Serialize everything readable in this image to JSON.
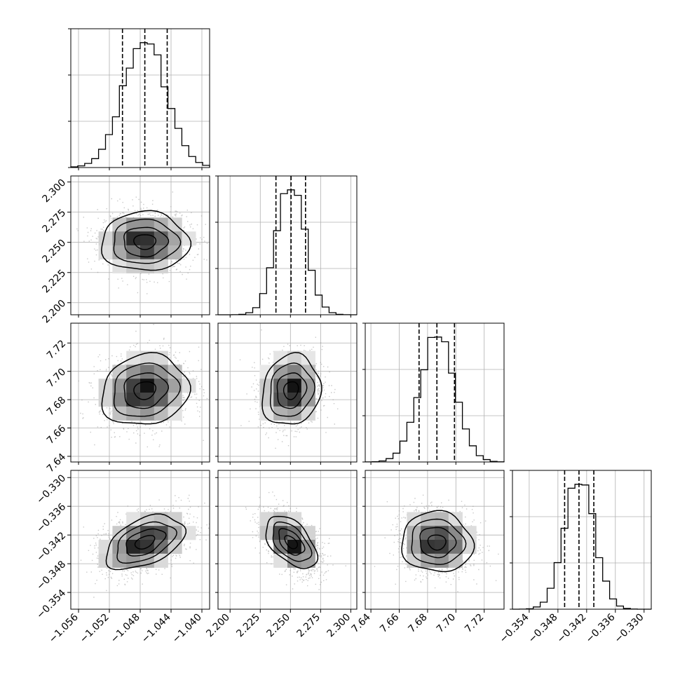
{
  "chart_data": {
    "type": "corner",
    "title": "",
    "quantiles": [
      0.16,
      0.5,
      0.84
    ],
    "grid": true,
    "legend": "none",
    "colors": {
      "hist": "#000000",
      "grid": "#b0b0b0",
      "scatter": "#000000",
      "density_max": "#000000"
    },
    "parameters": [
      {
        "axis_range": [
          -1.057,
          -1.039
        ],
        "ticks": [
          "−1.056",
          "−1.052",
          "−1.048",
          "−1.044",
          "−1.040"
        ],
        "tick_values": [
          -1.056,
          -1.052,
          -1.048,
          -1.044,
          -1.04
        ],
        "mean": -1.0474,
        "sd": 0.0028,
        "q16": -1.0503,
        "q50": -1.0474,
        "q84": -1.0445
      },
      {
        "axis_range": [
          2.19,
          2.305
        ],
        "ticks": [
          "2.200",
          "2.225",
          "2.250",
          "2.275",
          "2.300"
        ],
        "tick_values": [
          2.2,
          2.225,
          2.25,
          2.275,
          2.3
        ],
        "mean": 2.2505,
        "sd": 0.012,
        "q16": 2.238,
        "q50": 2.2505,
        "q84": 2.2625
      },
      {
        "axis_range": [
          7.636,
          7.734
        ],
        "ticks": [
          "7.64",
          "7.66",
          "7.68",
          "7.70",
          "7.72"
        ],
        "tick_values": [
          7.64,
          7.66,
          7.68,
          7.7,
          7.72
        ],
        "mean": 7.6866,
        "sd": 0.0124,
        "q16": 7.674,
        "q50": 7.6866,
        "q84": 7.699
      },
      {
        "axis_range": [
          -0.3575,
          -0.3285
        ],
        "ticks": [
          "−0.354",
          "−0.348",
          "−0.342",
          "−0.336",
          "−0.330"
        ],
        "tick_values": [
          -0.354,
          -0.348,
          -0.342,
          -0.336,
          -0.33
        ],
        "mean": -0.3435,
        "sd": 0.0031,
        "q16": -0.3466,
        "q50": -0.3436,
        "q84": -0.3405
      }
    ],
    "pair_correlations": {
      "1-0": 0.0,
      "2-0": 0.12,
      "2-1": 0.12,
      "3-0": 0.45,
      "3-1": -0.5,
      "3-2": -0.05
    },
    "contour_levels_sigma": [
      0.5,
      1.0,
      1.5,
      2.0
    ]
  }
}
